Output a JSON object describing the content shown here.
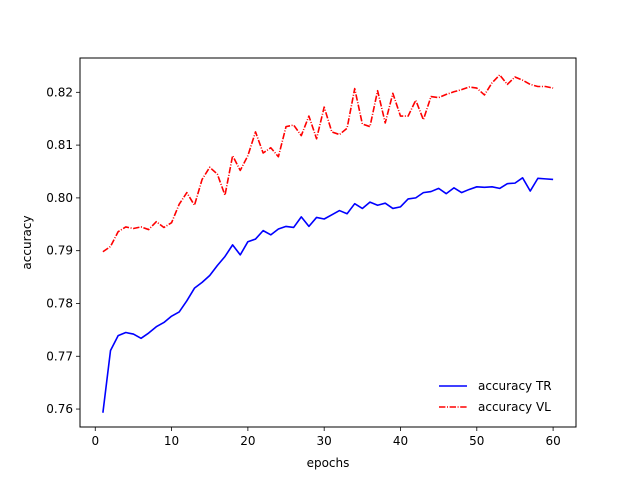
{
  "chart_data": {
    "type": "line",
    "title": "",
    "xlabel": "epochs",
    "ylabel": "accuracy",
    "xlim": [
      -2,
      63
    ],
    "ylim": [
      0.7566,
      0.8265
    ],
    "x_ticks": [
      0,
      10,
      20,
      30,
      40,
      50,
      60
    ],
    "x_tick_labels": [
      "0",
      "10",
      "20",
      "30",
      "40",
      "50",
      "60"
    ],
    "y_ticks": [
      0.76,
      0.77,
      0.78,
      0.79,
      0.8,
      0.81,
      0.82
    ],
    "y_tick_labels": [
      "0.76",
      "0.77",
      "0.78",
      "0.79",
      "0.80",
      "0.81",
      "0.82"
    ],
    "grid": false,
    "legend_position": "lower-right",
    "x": [
      1,
      2,
      3,
      4,
      5,
      6,
      7,
      8,
      9,
      10,
      11,
      12,
      13,
      14,
      15,
      16,
      17,
      18,
      19,
      20,
      21,
      22,
      23,
      24,
      25,
      26,
      27,
      28,
      29,
      30,
      31,
      32,
      33,
      34,
      35,
      36,
      37,
      38,
      39,
      40,
      41,
      42,
      43,
      44,
      45,
      46,
      47,
      48,
      49,
      50,
      51,
      52,
      53,
      54,
      55,
      56,
      57,
      58,
      59,
      60
    ],
    "series": [
      {
        "name": "accuracy TR",
        "color": "#0000ff",
        "line_style": "solid",
        "values": [
          0.7593,
          0.7711,
          0.7739,
          0.7745,
          0.7742,
          0.7734,
          0.7744,
          0.7756,
          0.7764,
          0.7776,
          0.7784,
          0.7805,
          0.7829,
          0.784,
          0.7853,
          0.7872,
          0.7889,
          0.7911,
          0.7892,
          0.7917,
          0.7922,
          0.7938,
          0.793,
          0.7941,
          0.7946,
          0.7944,
          0.7964,
          0.7946,
          0.7963,
          0.796,
          0.7968,
          0.7976,
          0.797,
          0.7989,
          0.798,
          0.7992,
          0.7986,
          0.799,
          0.798,
          0.7983,
          0.7998,
          0.8,
          0.801,
          0.8012,
          0.8018,
          0.8008,
          0.8019,
          0.801,
          0.8016,
          0.8021,
          0.802,
          0.8021,
          0.8018,
          0.8027,
          0.8028,
          0.8038,
          0.8013,
          0.8037,
          0.8036,
          0.8035
        ]
      },
      {
        "name": "accuracy VL",
        "color": "#ff0000",
        "line_style": "dashdot",
        "values": [
          0.7898,
          0.7908,
          0.7936,
          0.7945,
          0.7942,
          0.7945,
          0.794,
          0.7955,
          0.7944,
          0.7953,
          0.7988,
          0.801,
          0.7986,
          0.8035,
          0.8058,
          0.8045,
          0.8005,
          0.808,
          0.8052,
          0.808,
          0.8125,
          0.8085,
          0.8095,
          0.8078,
          0.8135,
          0.8138,
          0.8118,
          0.8155,
          0.8112,
          0.8172,
          0.8125,
          0.812,
          0.8132,
          0.8207,
          0.814,
          0.8135,
          0.8203,
          0.8142,
          0.8198,
          0.8155,
          0.8155,
          0.8185,
          0.8148,
          0.8192,
          0.819,
          0.8196,
          0.8201,
          0.8205,
          0.821,
          0.8208,
          0.8195,
          0.8218,
          0.8233,
          0.8215,
          0.8229,
          0.8223,
          0.8215,
          0.8211,
          0.8211,
          0.8208
        ]
      }
    ]
  }
}
